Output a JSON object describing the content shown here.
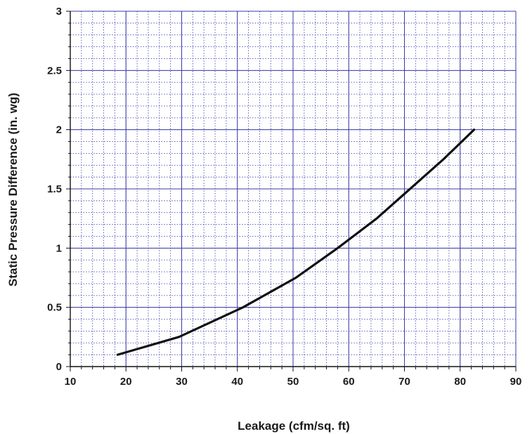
{
  "chart_data": {
    "type": "line",
    "title": "",
    "xlabel": "Leakage (cfm/sq. ft)",
    "ylabel": "Static Pressure Difference (in. wg)",
    "xlim": [
      10,
      90
    ],
    "ylim": [
      0,
      3
    ],
    "x_ticks": [
      "10",
      "20",
      "30",
      "40",
      "50",
      "60",
      "70",
      "80",
      "90"
    ],
    "y_ticks": [
      "0",
      "0.5",
      "1",
      "1.5",
      "2",
      "2.5",
      "3"
    ],
    "grid": true,
    "minor_grid_x_step": 2,
    "minor_grid_y_step": 0.1,
    "series": [
      {
        "x": [
          18.5,
          29.5,
          41,
          50.5,
          58,
          65,
          71,
          77,
          82.5
        ],
        "y": [
          0.1,
          0.25,
          0.5,
          0.75,
          1.0,
          1.25,
          1.5,
          1.75,
          2.0
        ]
      }
    ],
    "colors": {
      "major_grid": "#3a3aa8",
      "minor_grid": "#4a4ab8",
      "line": "#111111",
      "axis": "#111111"
    }
  }
}
